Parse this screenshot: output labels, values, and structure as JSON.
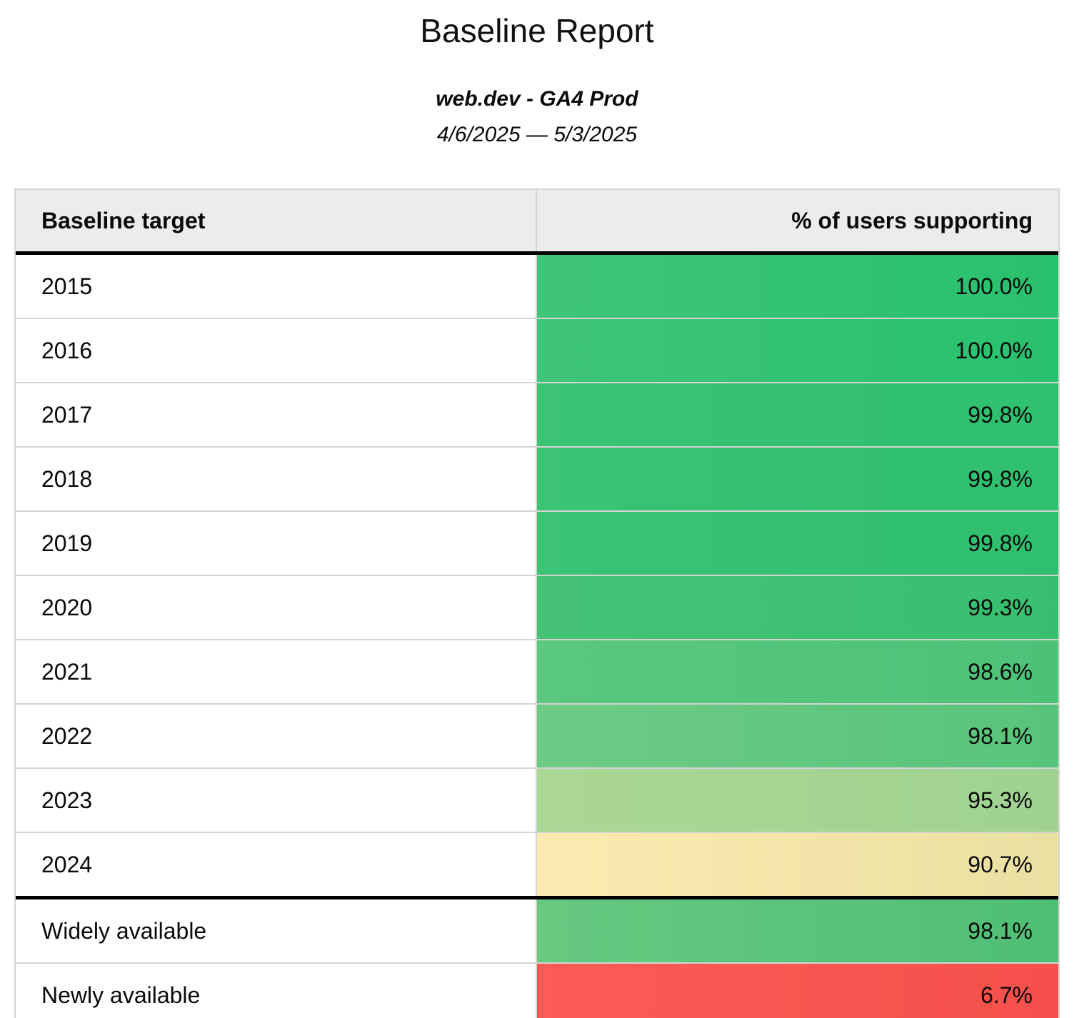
{
  "report": {
    "title": "Baseline Report",
    "property": "web.dev - GA4 Prod",
    "date_range": "4/6/2025 — 5/3/2025"
  },
  "table": {
    "columns": {
      "target": "Baseline target",
      "support": "% of users supporting"
    },
    "header_bg": "#ececec",
    "border_color": "#d4d4d4",
    "rule_color": "#000000",
    "rows": [
      {
        "target": "2015",
        "value": "100.0%",
        "bg": [
          "#3fc577",
          "#28c16e"
        ]
      },
      {
        "target": "2016",
        "value": "100.0%",
        "bg": [
          "#3fc577",
          "#28c16e"
        ]
      },
      {
        "target": "2017",
        "value": "99.8%",
        "bg": [
          "#3cc374",
          "#2ec06f"
        ]
      },
      {
        "target": "2018",
        "value": "99.8%",
        "bg": [
          "#3cc374",
          "#2ec06f"
        ]
      },
      {
        "target": "2019",
        "value": "99.8%",
        "bg": [
          "#3cc374",
          "#2ec06f"
        ]
      },
      {
        "target": "2020",
        "value": "99.3%",
        "bg": [
          "#46c277",
          "#37bf6f"
        ]
      },
      {
        "target": "2021",
        "value": "98.6%",
        "bg": [
          "#5ac87f",
          "#4cc277"
        ]
      },
      {
        "target": "2022",
        "value": "98.1%",
        "bg": [
          "#6ecb86",
          "#58c37a"
        ]
      },
      {
        "target": "2023",
        "value": "95.3%",
        "bg": [
          "#abd795",
          "#9fd291"
        ]
      },
      {
        "target": "2024",
        "value": "90.7%",
        "bg": [
          "#fdeab0",
          "#eae0a2"
        ]
      },
      {
        "target": "Widely available",
        "value": "98.1%",
        "bg": [
          "#68c981",
          "#4fbe74"
        ]
      },
      {
        "target": "Newly available",
        "value": "6.7%",
        "bg": [
          "#fd5b56",
          "#f5504b"
        ]
      }
    ]
  },
  "chart_data": {
    "type": "table",
    "title": "Baseline Report",
    "subtitle": "web.dev - GA4 Prod",
    "date_range": "4/6/2025 — 5/3/2025",
    "columns": [
      "Baseline target",
      "% of users supporting"
    ],
    "categories": [
      "2015",
      "2016",
      "2017",
      "2018",
      "2019",
      "2020",
      "2021",
      "2022",
      "2023",
      "2024",
      "Widely available",
      "Newly available"
    ],
    "values": [
      100.0,
      100.0,
      99.8,
      99.8,
      99.8,
      99.3,
      98.6,
      98.1,
      95.3,
      90.7,
      98.1,
      6.7
    ],
    "value_unit": "%",
    "color_scale": {
      "high": "#28c16e",
      "mid": "#fdeab0",
      "low": "#f5504b"
    },
    "layout": "heatmap-colored value column, thick rule separating year targets from availability groups"
  }
}
